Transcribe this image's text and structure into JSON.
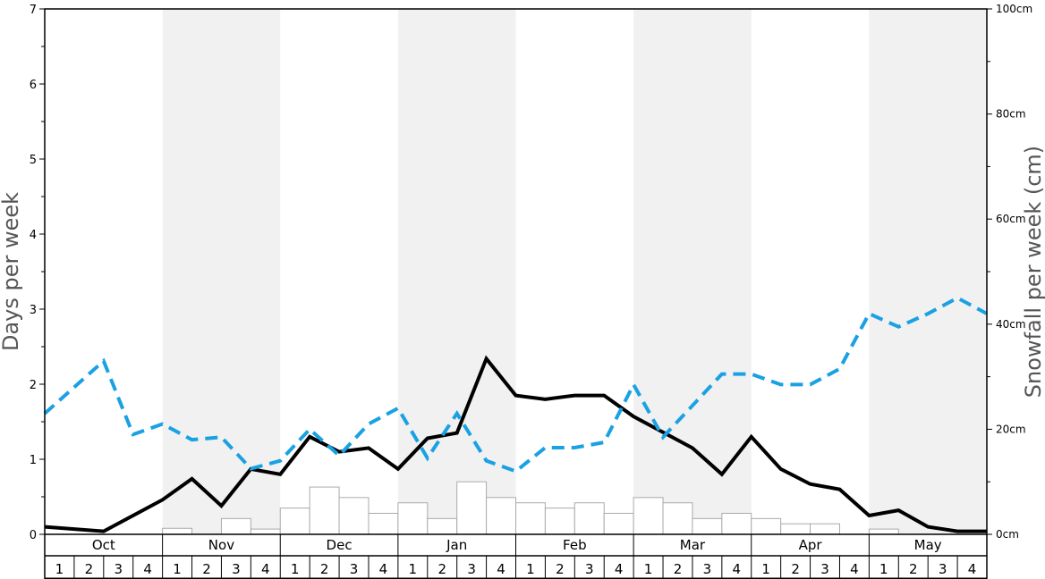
{
  "chart_data": {
    "type": "bar+line",
    "title": "",
    "ylabel_left": "Days per week",
    "ylabel_right": "Snowfall per week (cm)",
    "ylim_left": [
      0,
      7
    ],
    "ylim_right": [
      0,
      100
    ],
    "left_ticks": [
      "0",
      "1",
      "2",
      "3",
      "4",
      "5",
      "6",
      "7"
    ],
    "right_ticks": [
      "0cm",
      "20cm",
      "40cm",
      "60cm",
      "80cm",
      "100cm"
    ],
    "months": [
      "Oct",
      "Nov",
      "Dec",
      "Jan",
      "Feb",
      "Mar",
      "Apr",
      "May"
    ],
    "weeks": [
      "1",
      "2",
      "3",
      "4"
    ],
    "shaded_months": [
      "Nov",
      "Jan",
      "Mar",
      "May"
    ],
    "colors": {
      "bars_fill": "#ffffff",
      "bars_stroke": "#aaaaaa",
      "days_line": "#000000",
      "snowfall_line": "#1aa1e3",
      "shade": "#f1f1f1"
    },
    "series": [
      {
        "kind": "bars",
        "axis": "left",
        "values": [
          0,
          0,
          0,
          0,
          0.08,
          0,
          0.21,
          0.07,
          0.35,
          0.63,
          0.49,
          0.28,
          0.42,
          0.21,
          0.7,
          0.49,
          0.42,
          0.35,
          0.42,
          0.28,
          0.49,
          0.42,
          0.21,
          0.28,
          0.21,
          0.14,
          0.14,
          0,
          0.07,
          0,
          0,
          0
        ]
      },
      {
        "kind": "line",
        "axis": "left",
        "style": "solid",
        "values": [
          0.1,
          0.07,
          0.04,
          0.25,
          0.46,
          0.74,
          0.38,
          0.87,
          0.8,
          1.3,
          1.1,
          1.15,
          0.87,
          1.28,
          1.35,
          2.34,
          1.85,
          1.8,
          1.85,
          1.85,
          1.57,
          1.36,
          1.15,
          0.8,
          1.3,
          0.87,
          0.67,
          0.6,
          0.25,
          0.32,
          0.1,
          0.04,
          0.04
        ]
      },
      {
        "kind": "line",
        "axis": "right",
        "style": "dashed",
        "values": [
          23,
          28,
          33,
          19,
          21,
          18,
          18.5,
          12.5,
          14,
          20,
          15,
          21,
          24,
          14.5,
          23,
          14,
          12,
          16.5,
          16.5,
          17.5,
          28.5,
          18.5,
          24.5,
          30.5,
          30.5,
          28.5,
          28.5,
          31.5,
          42,
          39.5,
          42,
          45,
          42
        ]
      }
    ]
  }
}
